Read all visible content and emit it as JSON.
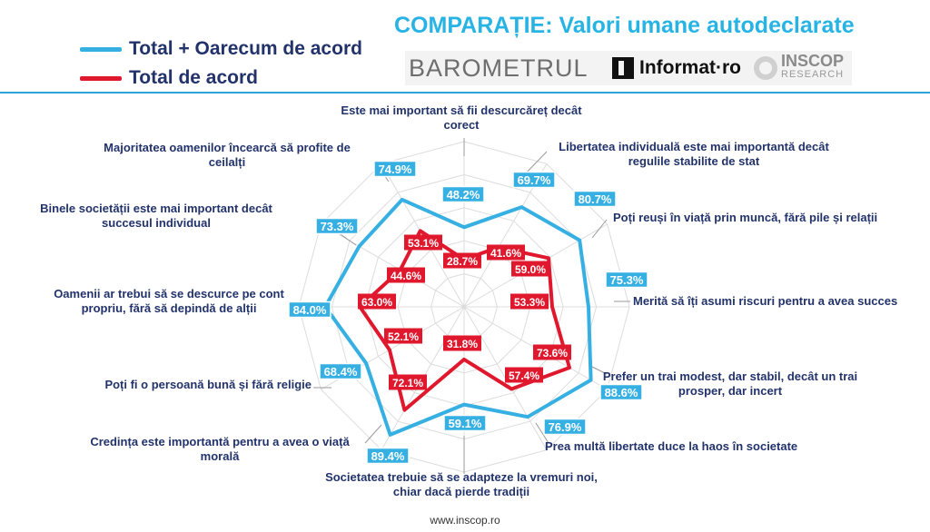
{
  "title": "COMPARAȚIE: Valori umane autodeclarate",
  "legend": [
    {
      "label": "Total + Oarecum de acord",
      "color": "#36afe2"
    },
    {
      "label": "Total de acord",
      "color": "#e0182d"
    }
  ],
  "logos": {
    "barometrul": "BAROMETRUL",
    "informat": "Informat·ro",
    "inscop": "INSCOP",
    "inscop_sub": "RESEARCH"
  },
  "footer": "www.inscop.ro",
  "chart_data": {
    "type": "radar",
    "categories": [
      "Este mai important să fii descurcăreț decât corect",
      "Libertatea individuală este mai importantă decât regulile stabilite de stat",
      "Poți reuși în viață prin muncă, fără pile și relații",
      "Merită să îți asumi riscuri pentru a avea succes",
      "Prefer un trai modest, dar stabil, decât un trai prosper, dar incert",
      "Prea multă libertate duce la haos în societate",
      "Societatea trebuie să se adapteze la vremuri noi, chiar dacă pierde tradiții",
      "Credința este importantă pentru a avea o viață morală",
      "Poți fi o persoană bună și fără religie",
      "Oamenii ar trebui să se descurce pe cont propriu, fără să depindă de alții",
      "Binele societății este mai important decât succesul individual",
      "Majoritatea oamenilor încearcă să profite de ceilalți"
    ],
    "series": [
      {
        "name": "Total + Oarecum de acord",
        "color": "#36afe2",
        "values": [
          48.2,
          69.7,
          80.7,
          75.3,
          88.6,
          76.9,
          59.1,
          89.4,
          68.4,
          84.0,
          73.3,
          74.9
        ],
        "labels": [
          "48.2%",
          "69.7%",
          "80.7%",
          "75.3%",
          "88.6%",
          "76.9%",
          "59.1%",
          "89.4%",
          "68.4%",
          "84.0%",
          "73.3%",
          "74.9%"
        ]
      },
      {
        "name": "Total de acord",
        "color": "#e0182d",
        "values": [
          28.7,
          41.6,
          59.0,
          53.3,
          73.6,
          57.4,
          31.8,
          72.1,
          52.1,
          63.0,
          44.6,
          53.1
        ],
        "labels": [
          "28.7%",
          "41.6%",
          "59.0%",
          "53.3%",
          "73.6%",
          "57.4%",
          "31.8%",
          "72.1%",
          "52.1%",
          "63.0%",
          "44.6%",
          "53.1%"
        ]
      }
    ],
    "rmax": 100,
    "grid": true
  }
}
